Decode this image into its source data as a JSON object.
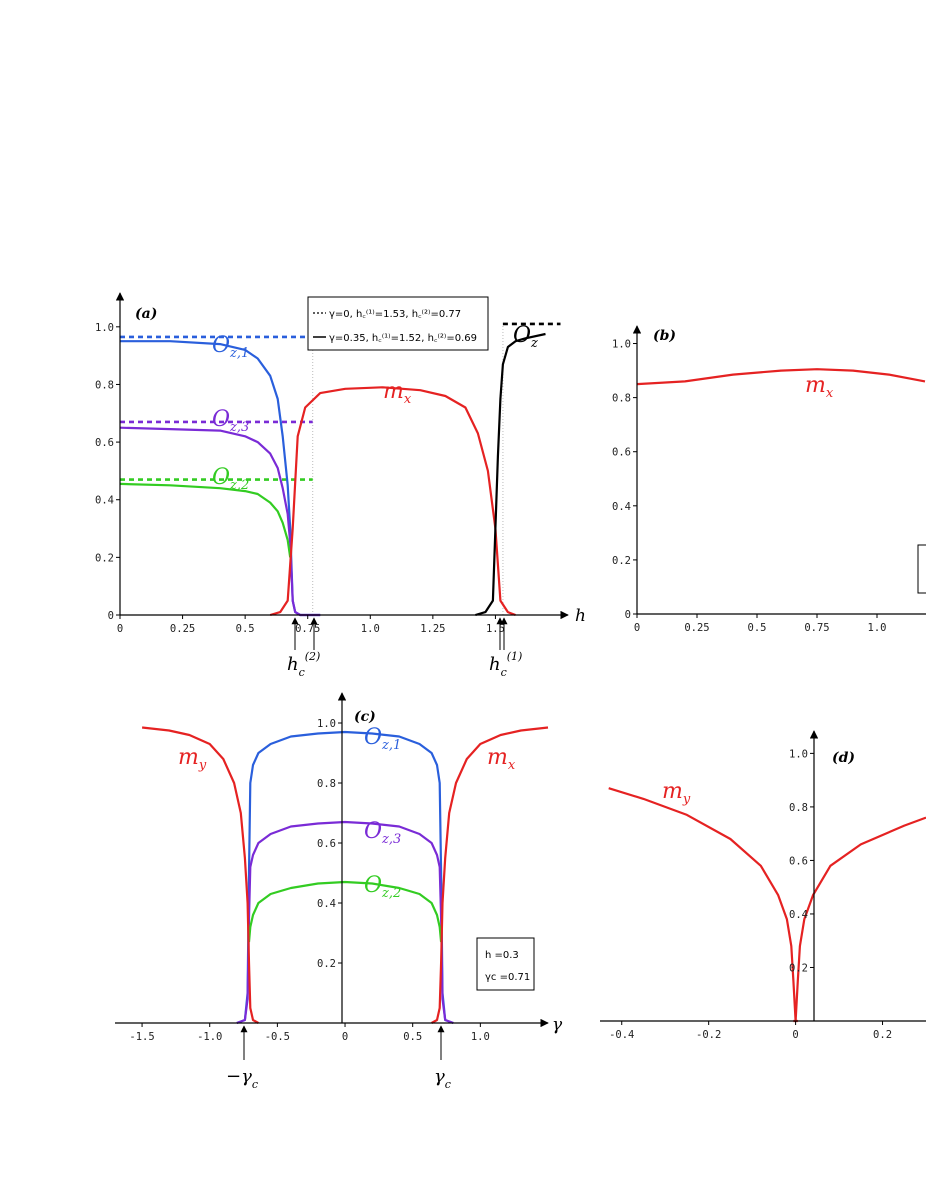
{
  "chart_data": [
    {
      "panel": "(a)",
      "type": "line",
      "xlabel": "h",
      "xlim": [
        0,
        1.75
      ],
      "ylim": [
        0,
        1.1
      ],
      "x_ticks": [
        "0",
        "0.25",
        "0.5",
        "0.75",
        "1.0",
        "1.25",
        "1.5"
      ],
      "y_ticks": [
        "0",
        "0.2",
        "0.4",
        "0.6",
        "0.8",
        "1.0"
      ],
      "legend": {
        "line1": "γ=0,    h꜀⁽¹⁾=1.53,  h꜀⁽²⁾=0.77",
        "line2": "γ=0.35, h꜀⁽¹⁾=1.52,  h꜀⁽²⁾=0.69"
      },
      "labels": {
        "oz1": "O",
        "oz1_sub": "z,1",
        "oz3": "O",
        "oz3_sub": "z,3",
        "oz2": "O",
        "oz2_sub": "z,2",
        "mx": "m",
        "mx_sub": "x",
        "oz": "O",
        "oz_sub": "z",
        "hc2": "h",
        "hc2_sub": "c",
        "hc2_sup": "(2)",
        "hc1": "h",
        "hc1_sub": "c",
        "hc1_sup": "(1)"
      },
      "series": [
        {
          "color": "#2a5fdc",
          "dash": true,
          "x": [
            0,
            0.77
          ],
          "y": [
            0.965,
            0.965
          ]
        },
        {
          "color": "#7a2bd6",
          "dash": true,
          "x": [
            0,
            0.77
          ],
          "y": [
            0.67,
            0.67
          ]
        },
        {
          "color": "#33cc22",
          "dash": true,
          "x": [
            0,
            0.77
          ],
          "y": [
            0.47,
            0.47
          ]
        },
        {
          "color": "#000000",
          "dash": true,
          "x": [
            1.53,
            1.76
          ],
          "y": [
            1.01,
            1.01
          ]
        },
        {
          "color": "#2a5fdc",
          "dash": false,
          "x": [
            0,
            0.2,
            0.4,
            0.5,
            0.55,
            0.6,
            0.63,
            0.65,
            0.67,
            0.68,
            0.69,
            0.7,
            0.72,
            0.8
          ],
          "y": [
            0.95,
            0.95,
            0.94,
            0.92,
            0.89,
            0.83,
            0.75,
            0.62,
            0.45,
            0.3,
            0.05,
            0.01,
            0.0,
            0.0
          ]
        },
        {
          "color": "#7a2bd6",
          "dash": false,
          "x": [
            0,
            0.2,
            0.4,
            0.5,
            0.55,
            0.6,
            0.63,
            0.65,
            0.67,
            0.68,
            0.69,
            0.7,
            0.72,
            0.8
          ],
          "y": [
            0.65,
            0.645,
            0.64,
            0.62,
            0.6,
            0.56,
            0.51,
            0.44,
            0.35,
            0.25,
            0.05,
            0.01,
            0.0,
            0.0
          ]
        },
        {
          "color": "#33cc22",
          "dash": false,
          "x": [
            0,
            0.2,
            0.4,
            0.5,
            0.55,
            0.6,
            0.63,
            0.65,
            0.67,
            0.68
          ],
          "y": [
            0.455,
            0.45,
            0.44,
            0.43,
            0.42,
            0.39,
            0.36,
            0.32,
            0.26,
            0.2
          ]
        },
        {
          "color": "#e52222",
          "dash": false,
          "x": [
            0.6,
            0.64,
            0.67,
            0.69,
            0.71,
            0.74,
            0.8,
            0.9,
            1.05,
            1.2,
            1.3,
            1.38,
            1.43,
            1.47,
            1.5,
            1.52,
            1.55,
            1.58
          ],
          "y": [
            0.0,
            0.01,
            0.05,
            0.3,
            0.62,
            0.72,
            0.77,
            0.785,
            0.79,
            0.78,
            0.76,
            0.72,
            0.63,
            0.5,
            0.3,
            0.05,
            0.01,
            0.0
          ]
        },
        {
          "color": "#000000",
          "dash": false,
          "x": [
            1.42,
            1.46,
            1.49,
            1.5,
            1.51,
            1.52,
            1.53,
            1.55,
            1.58,
            1.62,
            1.7
          ],
          "y": [
            0.0,
            0.01,
            0.05,
            0.3,
            0.55,
            0.75,
            0.87,
            0.93,
            0.95,
            0.96,
            0.975
          ]
        }
      ]
    },
    {
      "panel": "(b)",
      "type": "line",
      "xlim": [
        0,
        1.2
      ],
      "ylim": [
        0,
        1.05
      ],
      "x_ticks": [
        "0",
        "0.25",
        "0.5",
        "0.75",
        "1.0"
      ],
      "y_ticks": [
        "0",
        "0.2",
        "0.4",
        "0.6",
        "0.8",
        "1.0"
      ],
      "labels": {
        "mx": "m",
        "mx_sub": "x"
      },
      "series": [
        {
          "color": "#e52222",
          "x": [
            0,
            0.2,
            0.4,
            0.6,
            0.75,
            0.9,
            1.05,
            1.2
          ],
          "y": [
            0.85,
            0.86,
            0.885,
            0.9,
            0.905,
            0.9,
            0.885,
            0.86
          ]
        }
      ]
    },
    {
      "panel": "(c)",
      "type": "line",
      "xlabel": "γ",
      "xlim": [
        -1.7,
        1.5
      ],
      "ylim": [
        0,
        1.1
      ],
      "x_ticks": [
        "-1.5",
        "-1.0",
        "-0.5",
        "0",
        "0.5",
        "1.0"
      ],
      "y_ticks": [
        "0.2",
        "0.4",
        "0.6",
        "0.8",
        "1.0"
      ],
      "info": {
        "h": "h =0.3",
        "gc": "γc =0.71"
      },
      "labels": {
        "my": "m",
        "my_sub": "y",
        "mx": "m",
        "mx_sub": "x",
        "oz1": "O",
        "oz1_sub": "z,1",
        "oz3": "O",
        "oz3_sub": "z,3",
        "oz2": "O",
        "oz2_sub": "z,2",
        "neg_gc": "−γ",
        "neg_gc_sub": "c",
        "pos_gc": "γ",
        "pos_gc_sub": "c"
      },
      "series": [
        {
          "color": "#2a5fdc",
          "x": [
            -0.8,
            -0.74,
            -0.72,
            -0.71,
            -0.7,
            -0.68,
            -0.64,
            -0.55,
            -0.4,
            -0.2,
            0,
            0.2,
            0.4,
            0.55,
            0.64,
            0.68,
            0.7,
            0.71,
            0.72,
            0.74,
            0.8
          ],
          "y": [
            0.0,
            0.01,
            0.1,
            0.5,
            0.8,
            0.86,
            0.9,
            0.93,
            0.955,
            0.965,
            0.97,
            0.965,
            0.955,
            0.93,
            0.9,
            0.86,
            0.8,
            0.5,
            0.1,
            0.01,
            0.0
          ]
        },
        {
          "color": "#7a2bd6",
          "x": [
            -0.8,
            -0.74,
            -0.72,
            -0.71,
            -0.7,
            -0.68,
            -0.64,
            -0.55,
            -0.4,
            -0.2,
            0,
            0.2,
            0.4,
            0.55,
            0.64,
            0.68,
            0.7,
            0.71,
            0.72,
            0.74,
            0.8
          ],
          "y": [
            0.0,
            0.01,
            0.08,
            0.35,
            0.52,
            0.56,
            0.6,
            0.63,
            0.655,
            0.665,
            0.67,
            0.665,
            0.655,
            0.63,
            0.6,
            0.56,
            0.52,
            0.35,
            0.08,
            0.01,
            0.0
          ]
        },
        {
          "color": "#33cc22",
          "x": [
            -0.71,
            -0.7,
            -0.68,
            -0.64,
            -0.55,
            -0.4,
            -0.2,
            0,
            0.2,
            0.4,
            0.55,
            0.64,
            0.68,
            0.7,
            0.71
          ],
          "y": [
            0.27,
            0.32,
            0.36,
            0.4,
            0.43,
            0.45,
            0.465,
            0.47,
            0.465,
            0.45,
            0.43,
            0.4,
            0.36,
            0.32,
            0.27
          ]
        },
        {
          "color": "#e52222",
          "x": [
            -1.5,
            -1.3,
            -1.15,
            -1.0,
            -0.9,
            -0.82,
            -0.77,
            -0.74,
            -0.72,
            -0.71,
            -0.7,
            -0.68,
            -0.64
          ],
          "y": [
            0.985,
            0.975,
            0.96,
            0.93,
            0.88,
            0.8,
            0.7,
            0.55,
            0.4,
            0.2,
            0.05,
            0.01,
            0.0
          ]
        },
        {
          "color": "#e52222",
          "x": [
            0.64,
            0.68,
            0.7,
            0.71,
            0.72,
            0.74,
            0.77,
            0.82,
            0.9,
            1.0,
            1.15,
            1.3,
            1.5
          ],
          "y": [
            0.0,
            0.01,
            0.05,
            0.2,
            0.4,
            0.55,
            0.7,
            0.8,
            0.88,
            0.93,
            0.96,
            0.975,
            0.985
          ]
        }
      ]
    },
    {
      "panel": "(d)",
      "type": "line",
      "xlim": [
        -0.45,
        0.3
      ],
      "ylim": [
        0,
        1.05
      ],
      "x_ticks": [
        "-0.4",
        "-0.2",
        "0",
        "0.2"
      ],
      "y_ticks": [
        "0.2",
        "0.4",
        "0.6",
        "0.8",
        "1.0"
      ],
      "labels": {
        "my": "m",
        "my_sub": "y"
      },
      "series": [
        {
          "color": "#e52222",
          "x": [
            -0.43,
            -0.35,
            -0.25,
            -0.15,
            -0.08,
            -0.04,
            -0.02,
            -0.01,
            -0.005,
            0,
            0.005
          ],
          "y": [
            0.87,
            0.83,
            0.77,
            0.68,
            0.58,
            0.47,
            0.38,
            0.28,
            0.15,
            0.0,
            0.0
          ]
        },
        {
          "color": "#e52222",
          "x": [
            -0.005,
            0,
            0.005,
            0.01,
            0.02,
            0.04,
            0.08,
            0.15,
            0.25,
            0.3
          ],
          "y": [
            0.0,
            0.0,
            0.15,
            0.28,
            0.38,
            0.47,
            0.58,
            0.66,
            0.73,
            0.76
          ]
        }
      ]
    }
  ]
}
